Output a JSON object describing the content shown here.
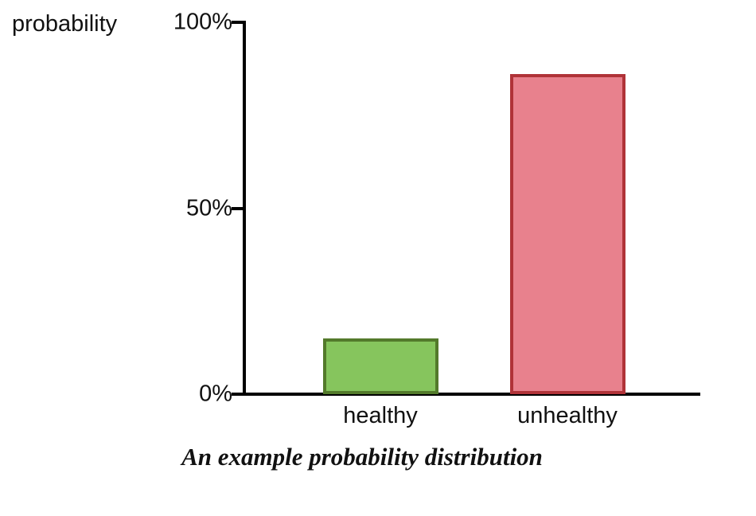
{
  "chart_data": {
    "type": "bar",
    "categories": [
      "healthy",
      "unhealthy"
    ],
    "values": [
      15,
      86
    ],
    "title": "",
    "caption": "An example probability distribution",
    "xlabel": "",
    "ylabel": "probability",
    "ylim": [
      0,
      100
    ],
    "yticks": [
      {
        "label": "100%",
        "value": 100
      },
      {
        "label": "50%",
        "value": 50
      },
      {
        "label": "0%",
        "value": 0
      }
    ],
    "bar_colors": [
      {
        "fill": "#86c55d",
        "stroke": "#537a2b"
      },
      {
        "fill": "#e8818d",
        "stroke": "#b03338"
      }
    ],
    "axis_color": "#000000",
    "background": "#ffffff",
    "grid": false,
    "legend": "none"
  }
}
